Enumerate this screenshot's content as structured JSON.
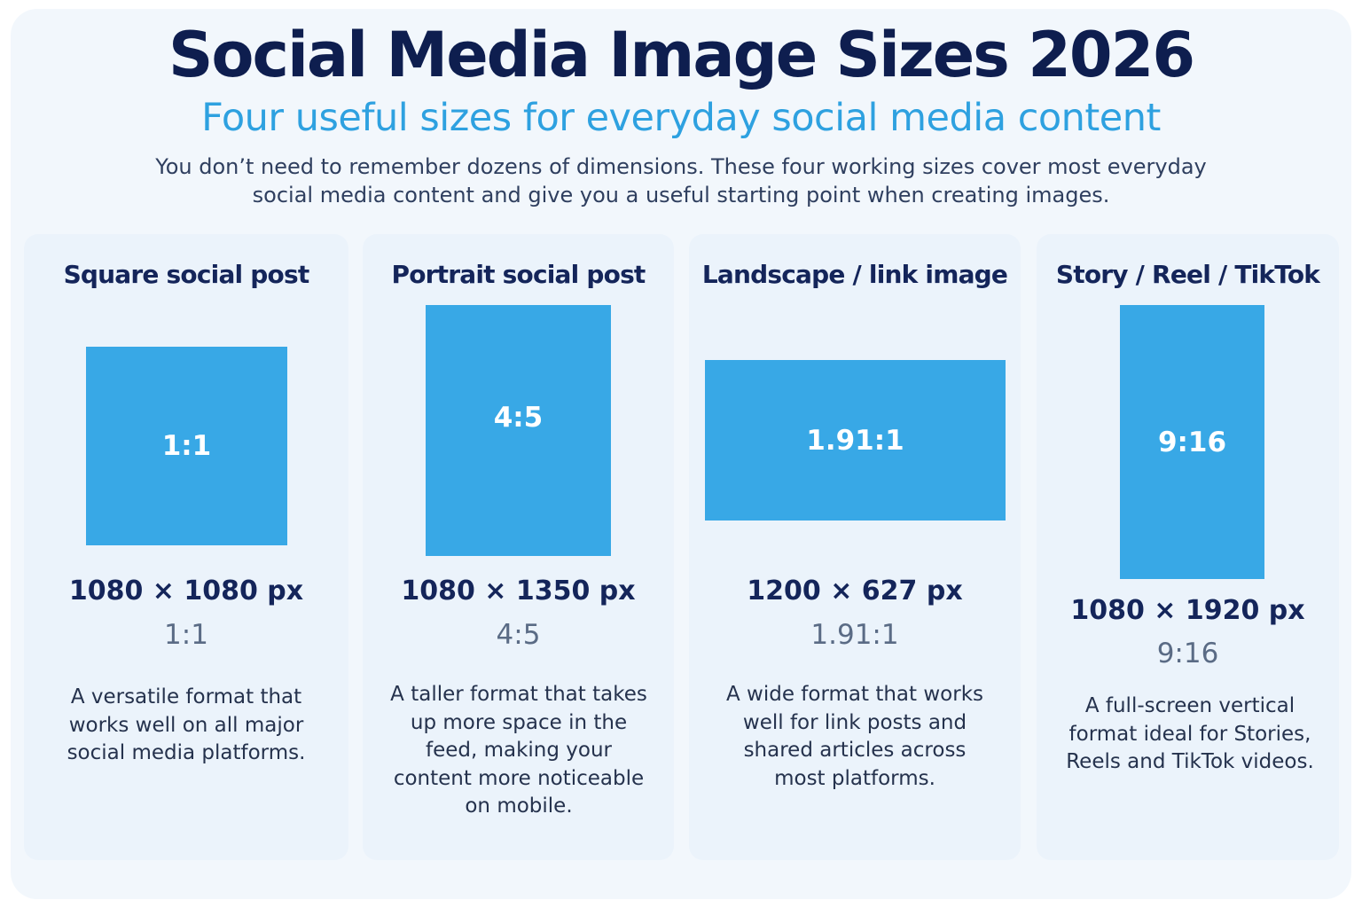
{
  "header": {
    "title": "Social Media Image Sizes 2026",
    "subtitle": "Four useful sizes for everyday social media content",
    "intro": "You don’t need to remember dozens of dimensions. These four working sizes cover most everyday social media content and give you a useful starting point when creating images."
  },
  "colors": {
    "title": "#0e1e4f",
    "subtitle": "#2ea1e0",
    "box_fill": "#38a8e6",
    "card_bg": "#ebf3fb"
  },
  "cards": [
    {
      "title": "Square social post",
      "box_label": "1:1",
      "dimensions": "1080 × 1080 px",
      "ratio": "1:1",
      "description": "A versatile format that works well on all major social media platforms."
    },
    {
      "title": "Portrait social post",
      "box_label": "4:5",
      "dimensions": "1080 × 1350 px",
      "ratio": "4:5",
      "description": "A taller format that takes up more space in the feed, making your content more noticeable on mobile."
    },
    {
      "title": "Landscape / link image",
      "box_label": "1.91:1",
      "dimensions": "1200 × 627 px",
      "ratio": "1.91:1",
      "description": "A wide format that works well for link posts and shared articles across most platforms."
    },
    {
      "title": "Story / Reel / TikTok",
      "box_label": "9:16",
      "dimensions": "1080 × 1920 px",
      "ratio": "9:16",
      "description": "A full-screen vertical format ideal for Stories, Reels and TikTok videos."
    }
  ]
}
